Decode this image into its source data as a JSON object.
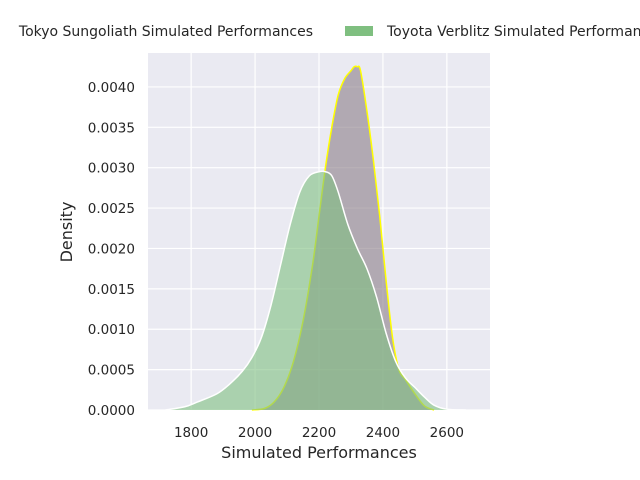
{
  "chart_data": {
    "type": "area",
    "title": "",
    "xlabel": "Simulated Performances",
    "ylabel": "Density",
    "xlim": [
      1665,
      2735
    ],
    "ylim": [
      0,
      0.00442
    ],
    "x_ticks": [
      1800,
      2000,
      2200,
      2400,
      2600
    ],
    "x_tick_labels": [
      "1800",
      "2000",
      "2200",
      "2400",
      "2600"
    ],
    "y_ticks": [
      0,
      0.0005,
      0.001,
      0.0015,
      0.002,
      0.0025,
      0.003,
      0.0035,
      0.004
    ],
    "y_tick_labels": [
      "0.0000",
      "0.0005",
      "0.0010",
      "0.0015",
      "0.0020",
      "0.0025",
      "0.0030",
      "0.0035",
      "0.0040"
    ],
    "grid": true,
    "legend_position": "top (outside)",
    "series": [
      {
        "name": "Tokyo Sungoliath Simulated Performances",
        "fill_color": "#8a7d87",
        "line_color": "#ffff00",
        "x": [
          1990,
          2030,
          2060,
          2090,
          2120,
          2150,
          2180,
          2200,
          2220,
          2240,
          2260,
          2280,
          2300,
          2310,
          2320,
          2330,
          2350,
          2370,
          2390,
          2410,
          2430,
          2450,
          2470,
          2500,
          2530,
          2560
        ],
        "y": [
          0,
          2e-05,
          0.0001,
          0.00028,
          0.0006,
          0.0011,
          0.0018,
          0.0024,
          0.003,
          0.0035,
          0.0039,
          0.0041,
          0.0042,
          0.00425,
          0.00425,
          0.0042,
          0.0037,
          0.0031,
          0.0024,
          0.0016,
          0.0009,
          0.0005,
          0.00038,
          0.0002,
          5e-05,
          0
        ]
      },
      {
        "name": "Toyota Verblitz Simulated Performances",
        "fill_color": "#7fbf80",
        "line_color": "#ffffff",
        "x": [
          1720,
          1780,
          1820,
          1880,
          1920,
          1960,
          1990,
          2020,
          2050,
          2080,
          2110,
          2140,
          2170,
          2200,
          2220,
          2240,
          2260,
          2290,
          2320,
          2350,
          2380,
          2410,
          2440,
          2470,
          2500,
          2530,
          2560,
          2600,
          2660
        ],
        "y": [
          0,
          4e-05,
          0.0001,
          0.0002,
          0.00032,
          0.00048,
          0.00065,
          0.0009,
          0.0013,
          0.0018,
          0.0023,
          0.0027,
          0.0029,
          0.00295,
          0.00295,
          0.0029,
          0.0027,
          0.0023,
          0.002,
          0.00175,
          0.0014,
          0.00095,
          0.0006,
          0.0004,
          0.00028,
          0.00016,
          6e-05,
          1e-05,
          0
        ]
      }
    ]
  }
}
